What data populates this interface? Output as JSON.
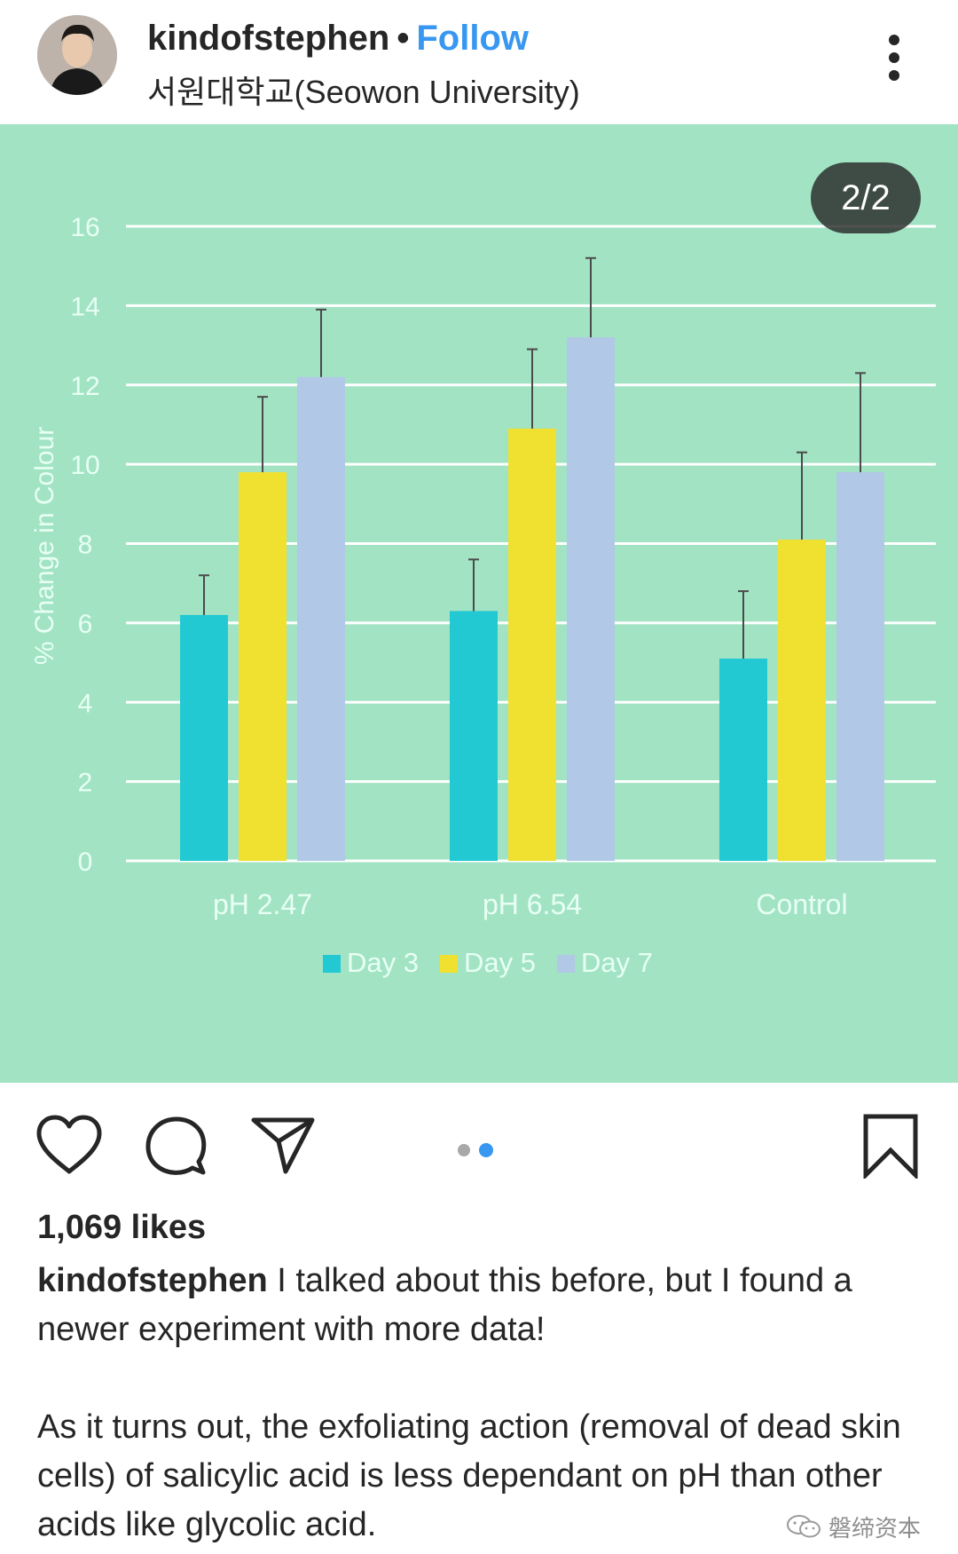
{
  "header": {
    "username": "kindofstephen",
    "separator": "•",
    "follow_label": "Follow",
    "location": "서원대학교(Seowon University)",
    "more_icon": "more-vertical-icon"
  },
  "post_image": {
    "counter": "2/2",
    "background_color": "#a2e3c4"
  },
  "chart_data": {
    "type": "bar",
    "title": "",
    "xlabel": "",
    "ylabel": "% Change in Colour",
    "ylim": [
      0,
      16
    ],
    "yticks": [
      0,
      2,
      4,
      6,
      8,
      10,
      12,
      14,
      16
    ],
    "categories": [
      "pH 2.47",
      "pH 6.54",
      "Control"
    ],
    "grid": true,
    "legend_position": "bottom",
    "series": [
      {
        "name": "Day 3",
        "color": "#22c9d3",
        "values": [
          6.2,
          6.3,
          5.1
        ],
        "error": [
          1.0,
          1.3,
          1.7
        ]
      },
      {
        "name": "Day 5",
        "color": "#f0e030",
        "values": [
          9.8,
          10.9,
          8.1
        ],
        "error": [
          1.9,
          2.0,
          2.2
        ]
      },
      {
        "name": "Day 7",
        "color": "#b1c8e6",
        "values": [
          12.2,
          13.2,
          9.8
        ],
        "error": [
          1.7,
          2.0,
          2.5
        ]
      }
    ]
  },
  "actions": {
    "like_icon": "heart-icon",
    "comment_icon": "comment-icon",
    "share_icon": "send-icon",
    "save_icon": "bookmark-icon",
    "carousel_total": 2,
    "carousel_active": 2
  },
  "post": {
    "likes": "1,069 likes",
    "caption_user": "kindofstephen",
    "caption_text_1": "I talked about this before, but I found a newer experiment with more data!",
    "caption_text_2": "As it turns out, the exfoliating action (removal of dead skin cells) of salicylic acid is less dependant on pH than other acids like glycolic acid."
  },
  "watermark": {
    "text": "磐缔资本",
    "icon": "wechat-icon"
  },
  "colors": {
    "accent": "#3897f0",
    "text": "#262626",
    "chart_axis_text": "#e8fff4"
  }
}
